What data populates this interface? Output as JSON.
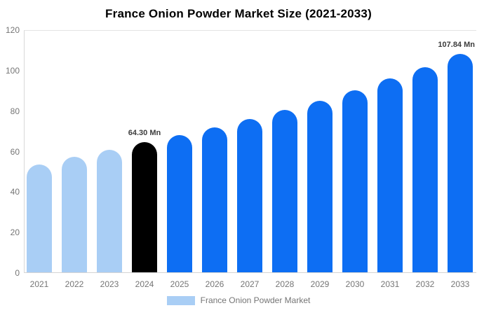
{
  "title": "France Onion Powder Market Size (2021-2033)",
  "legend": {
    "label": "France Onion Powder Market",
    "swatch_color": "#a9cef5"
  },
  "colors": {
    "historical_bar": "#a9cef5",
    "base_year_bar": "#000000",
    "forecast_bar": "#0d6ef3",
    "axis_line": "#d9d9d9",
    "tick_text": "#757575",
    "value_label_text": "#3c3c3c"
  },
  "chart_data": {
    "type": "bar",
    "title": "France Onion Powder Market Size (2021-2033)",
    "xlabel": "",
    "ylabel": "",
    "unit": "Mn",
    "ylim": [
      0,
      120
    ],
    "yticks": [
      0,
      20,
      40,
      60,
      80,
      100,
      120
    ],
    "grid": false,
    "legend_position": "bottom",
    "categories": [
      "2021",
      "2022",
      "2023",
      "2024",
      "2025",
      "2026",
      "2027",
      "2028",
      "2029",
      "2030",
      "2031",
      "2032",
      "2033"
    ],
    "values": [
      53.2,
      57.0,
      60.5,
      64.3,
      67.7,
      71.7,
      75.8,
      80.1,
      84.7,
      89.9,
      95.7,
      101.2,
      107.84
    ],
    "bars": [
      {
        "year": "2021",
        "value": 53.2,
        "color": "#a9cef5",
        "label": null
      },
      {
        "year": "2022",
        "value": 57.0,
        "color": "#a9cef5",
        "label": null
      },
      {
        "year": "2023",
        "value": 60.5,
        "color": "#a9cef5",
        "label": null
      },
      {
        "year": "2024",
        "value": 64.3,
        "color": "#000000",
        "label": "64.30 Mn"
      },
      {
        "year": "2025",
        "value": 67.7,
        "color": "#0d6ef3",
        "label": null
      },
      {
        "year": "2026",
        "value": 71.7,
        "color": "#0d6ef3",
        "label": null
      },
      {
        "year": "2027",
        "value": 75.8,
        "color": "#0d6ef3",
        "label": null
      },
      {
        "year": "2028",
        "value": 80.1,
        "color": "#0d6ef3",
        "label": null
      },
      {
        "year": "2029",
        "value": 84.7,
        "color": "#0d6ef3",
        "label": null
      },
      {
        "year": "2030",
        "value": 89.9,
        "color": "#0d6ef3",
        "label": null
      },
      {
        "year": "2031",
        "value": 95.7,
        "color": "#0d6ef3",
        "label": null
      },
      {
        "year": "2032",
        "value": 101.2,
        "color": "#0d6ef3",
        "label": null
      },
      {
        "year": "2033",
        "value": 107.84,
        "color": "#0d6ef3",
        "label": "107.84 Mn"
      }
    ],
    "annotations": [
      {
        "category": "2024",
        "text": "64.30 Mn"
      },
      {
        "category": "2033",
        "text": "107.84 Mn"
      }
    ]
  }
}
